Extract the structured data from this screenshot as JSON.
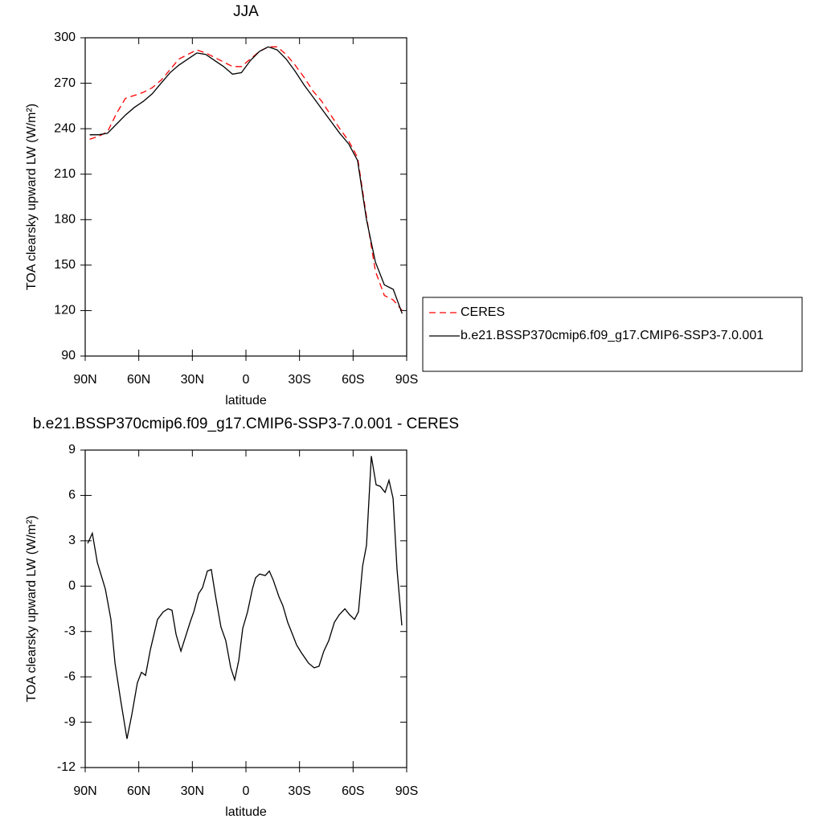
{
  "chart_data": [
    {
      "type": "line",
      "title": "JJA",
      "xlabel": "latitude",
      "ylabel": "TOA clearsky upward LW (W/m²)",
      "x": [
        87.5,
        82.5,
        77.5,
        72.5,
        67.5,
        62.5,
        57.5,
        52.5,
        47.5,
        42.5,
        37.5,
        32.5,
        27.5,
        22.5,
        17.5,
        12.5,
        7.5,
        2.5,
        -2.5,
        -7.5,
        -12.5,
        -17.5,
        -22.5,
        -27.5,
        -32.5,
        -37.5,
        -42.5,
        -47.5,
        -52.5,
        -57.5,
        -62.5,
        -67.5,
        -72.5,
        -77.5,
        -82.5,
        -87.5
      ],
      "series": [
        {
          "name": "CERES",
          "color": "#ff0000",
          "dash": true,
          "values": [
            233,
            235,
            238,
            250,
            260,
            262,
            264,
            267,
            272,
            279,
            286,
            289,
            292,
            290,
            287,
            284,
            281,
            281,
            286,
            291,
            294,
            294,
            289,
            282,
            274,
            265,
            258,
            249,
            240,
            232,
            221,
            182,
            146,
            130,
            127,
            120
          ]
        },
        {
          "name": "b.e21.BSSP370cmip6.f09_g17.CMIP6-SSP3-7.0.001",
          "color": "#000000",
          "dash": false,
          "values": [
            236,
            236,
            237,
            243,
            249,
            254,
            258,
            263,
            270,
            277,
            282,
            286,
            290,
            289,
            285,
            281,
            276,
            277,
            285,
            291,
            294,
            292,
            286,
            278,
            269,
            261,
            253,
            245,
            237,
            230,
            219,
            180,
            152,
            137,
            134,
            118
          ]
        }
      ],
      "xlim": [
        90,
        -90
      ],
      "ylim": [
        90,
        300
      ],
      "xticks": [
        {
          "value": 90,
          "label": "90N"
        },
        {
          "value": 60,
          "label": "60N"
        },
        {
          "value": 30,
          "label": "30N"
        },
        0,
        {
          "value": -30,
          "label": "30S"
        },
        {
          "value": -60,
          "label": "60S"
        },
        {
          "value": -90,
          "label": "90S"
        }
      ],
      "yticks": [
        90,
        120,
        150,
        180,
        210,
        240,
        270,
        300
      ],
      "legend": "right"
    },
    {
      "type": "line",
      "title": "b.e21.BSSP370cmip6.f09_g17.CMIP6-SSP3-7.0.001 - CERES",
      "xlabel": "latitude",
      "ylabel": "TOA clearsky upward LW (W/m²)",
      "x": [
        88.6,
        86,
        83.2,
        78.7,
        75.6,
        73.3,
        70.2,
        66.6,
        63.9,
        60.8,
        58.5,
        56.2,
        53.5,
        49.5,
        46.3,
        43.6,
        41.4,
        39.1,
        36.4,
        31,
        29.2,
        26.5,
        24.3,
        21.6,
        19.4,
        17.1,
        14,
        11.3,
        8.5,
        6.3,
        4,
        1.8,
        -0.9,
        -3.6,
        -5.4,
        -7.7,
        -10.8,
        -13.1,
        -15.3,
        -18.5,
        -20.7,
        -23.4,
        -26.1,
        -28.4,
        -31,
        -35.1,
        -38.2,
        -40.9,
        -43.6,
        -46.4,
        -49.5,
        -52.2,
        -55.4,
        -58.1,
        -60.8,
        -63,
        -65.3,
        -67.5,
        -70.2,
        -72.9,
        -75.2,
        -77.9,
        -80.1,
        -82.4,
        -84.6,
        -87.3
      ],
      "series": [
        {
          "name": null,
          "color": "#000000",
          "dash": false,
          "values": [
            2.83,
            3.5,
            1.56,
            -0.2,
            -2.2,
            -5.1,
            -7.5,
            -10.1,
            -8.5,
            -6.4,
            -5.7,
            -5.9,
            -4.2,
            -2.2,
            -1.7,
            -1.5,
            -1.6,
            -3.2,
            -4.3,
            -2.3,
            -1.7,
            -0.5,
            -0.1,
            1.0,
            1.1,
            -0.6,
            -2.7,
            -3.6,
            -5.4,
            -6.2,
            -4.9,
            -2.8,
            -1.7,
            -0.2,
            0.55,
            0.8,
            0.7,
            1.0,
            0.4,
            -0.7,
            -1.3,
            -2.4,
            -3.2,
            -3.9,
            -4.4,
            -5.1,
            -5.4,
            -5.3,
            -4.3,
            -3.6,
            -2.4,
            -1.9,
            -1.5,
            -1.9,
            -2.2,
            -1.7,
            1.3,
            2.7,
            8.6,
            6.7,
            6.6,
            6.2,
            7.0,
            5.8,
            1.1,
            -2.6
          ]
        }
      ],
      "xlim": [
        90,
        -90
      ],
      "ylim": [
        -12,
        9
      ],
      "xticks": [
        {
          "value": 90,
          "label": "90N"
        },
        {
          "value": 60,
          "label": "60N"
        },
        {
          "value": 30,
          "label": "30N"
        },
        0,
        {
          "value": -30,
          "label": "30S"
        },
        {
          "value": -60,
          "label": "60S"
        },
        {
          "value": -90,
          "label": "90S"
        }
      ],
      "yticks": [
        -12,
        -9,
        -6,
        -3,
        0,
        3,
        6,
        9
      ]
    }
  ]
}
